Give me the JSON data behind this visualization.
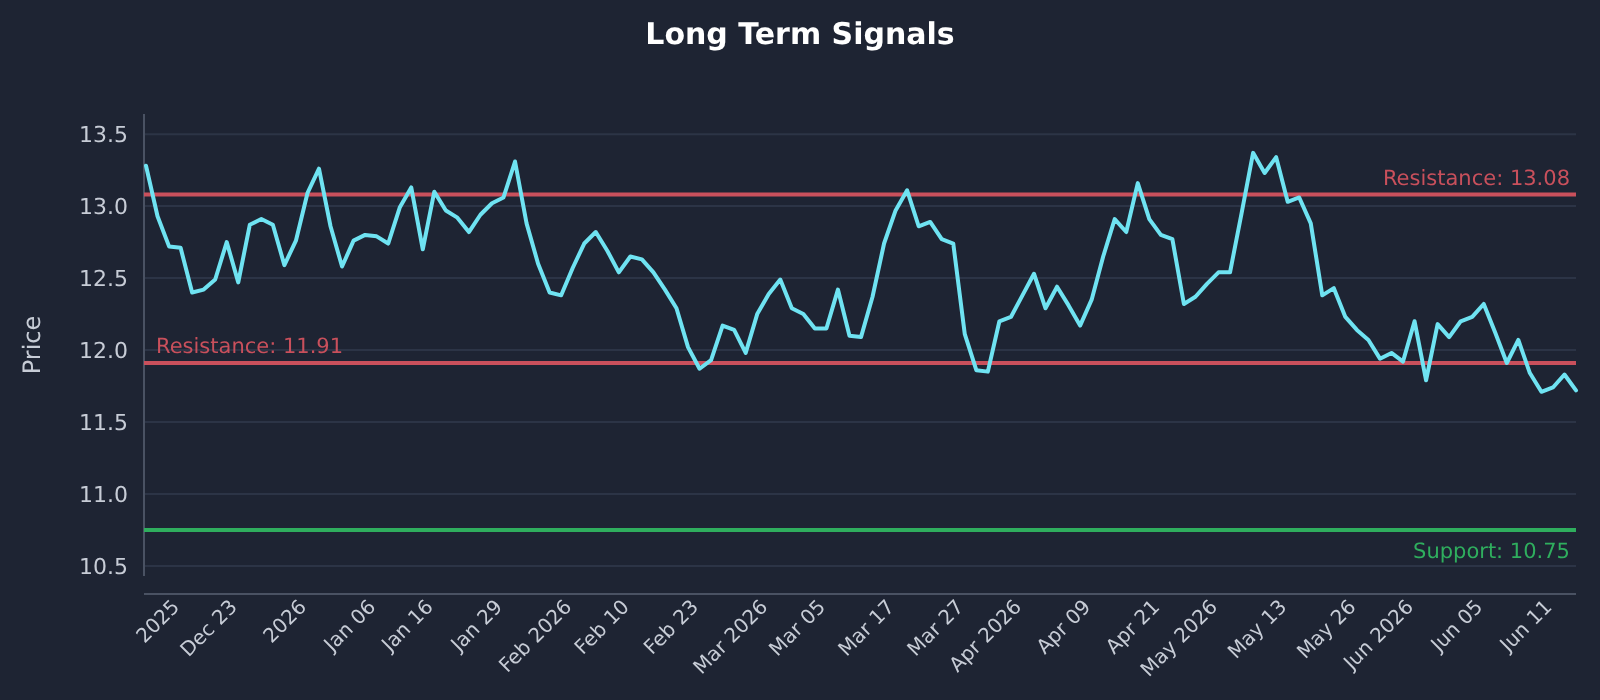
{
  "chart_data": {
    "type": "line",
    "title": "Long Term Signals",
    "ylabel": "Price",
    "categories": [
      null,
      null,
      null,
      "2025",
      null,
      null,
      null,
      null,
      "Dec 23",
      null,
      null,
      null,
      null,
      null,
      "2026",
      null,
      null,
      null,
      null,
      null,
      "Jan 06",
      null,
      null,
      null,
      null,
      "Jan 16",
      null,
      null,
      null,
      null,
      null,
      "Jan 29",
      null,
      null,
      null,
      null,
      null,
      "Feb 2026",
      null,
      null,
      null,
      null,
      "Feb 10",
      null,
      null,
      null,
      null,
      null,
      "Feb 23",
      null,
      null,
      null,
      null,
      null,
      "Mar 2026",
      null,
      null,
      null,
      null,
      "Mar 05",
      null,
      null,
      null,
      null,
      null,
      "Mar 17",
      null,
      null,
      null,
      null,
      null,
      "Mar 27",
      null,
      null,
      null,
      null,
      "Apr 2026",
      null,
      null,
      null,
      null,
      null,
      "Apr 09",
      null,
      null,
      null,
      null,
      null,
      "Apr 21",
      null,
      null,
      null,
      null,
      "May 2026",
      null,
      null,
      null,
      null,
      null,
      "May 13",
      null,
      null,
      null,
      null,
      null,
      "May 26",
      null,
      null,
      null,
      null,
      "Jun 2026",
      null,
      null,
      null,
      null,
      null,
      "Jun 05",
      null,
      null,
      null,
      null,
      null,
      "Jun 11",
      null,
      null
    ],
    "series": [
      {
        "color": "#6fe3f2",
        "values": [
          13.28,
          12.93,
          12.72,
          12.71,
          12.4,
          12.42,
          12.49,
          12.75,
          12.47,
          12.87,
          12.91,
          12.87,
          12.59,
          12.76,
          13.09,
          13.26,
          12.86,
          12.58,
          12.76,
          12.8,
          12.79,
          12.74,
          12.99,
          13.13,
          12.7,
          13.1,
          12.97,
          12.92,
          12.82,
          12.94,
          13.02,
          13.06,
          13.31,
          12.88,
          12.6,
          12.4,
          12.38,
          12.57,
          12.74,
          12.82,
          12.69,
          12.54,
          12.65,
          12.63,
          12.54,
          12.42,
          12.29,
          12.02,
          11.87,
          11.93,
          12.17,
          12.14,
          11.98,
          12.25,
          12.39,
          12.49,
          12.29,
          12.25,
          12.15,
          12.15,
          12.42,
          12.1,
          12.09,
          12.37,
          12.74,
          12.97,
          13.11,
          12.86,
          12.89,
          12.77,
          12.74,
          12.11,
          11.86,
          11.85,
          12.2,
          12.23,
          12.38,
          12.53,
          12.29,
          12.44,
          12.31,
          12.17,
          12.35,
          12.65,
          12.91,
          12.82,
          13.16,
          12.91,
          12.8,
          12.77,
          12.32,
          12.37,
          12.46,
          12.54,
          12.54,
          12.95,
          13.37,
          13.23,
          13.34,
          13.03,
          13.06,
          12.88,
          12.38,
          12.43,
          12.23,
          12.14,
          12.07,
          11.94,
          11.98,
          11.92,
          12.2,
          11.79,
          12.18,
          12.09,
          12.2,
          12.23,
          12.32,
          12.12,
          11.91,
          12.07,
          11.84,
          11.71,
          11.74,
          11.83,
          11.72
        ]
      }
    ],
    "ylim": [
      10.43,
      13.64
    ],
    "yticks": [
      10.5,
      {
        "value": 11,
        "label": "11.0"
      },
      11.5,
      {
        "value": 12,
        "label": "12.0"
      },
      12.5,
      {
        "value": 13,
        "label": "13.0"
      },
      13.5
    ],
    "grid": "y",
    "line_style": "solid",
    "marker": "none",
    "ref_lines": [
      {
        "axis": "y",
        "value": 13.08,
        "label": "Resistance: 13.08",
        "color": "#c9505c"
      },
      {
        "axis": "y",
        "value": 11.91,
        "label": "Resistance: 11.91",
        "color": "#c9505c"
      },
      {
        "axis": "y",
        "value": 10.75,
        "label": "Support: 10.75",
        "color": "#2fae5e"
      }
    ]
  }
}
